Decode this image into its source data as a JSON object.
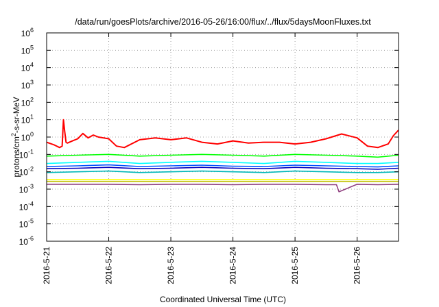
{
  "chart_data": {
    "type": "line",
    "title": "/data/run/goesPlots/archive/2016-05-26/16:00/flux/../flux/5daysMoonFluxes.txt",
    "xlabel": "Coordinated Universal Time (UTC)",
    "ylabel_parts": [
      "protons/cm",
      "2",
      "-s-sr-MeV"
    ],
    "y_scale": "log",
    "ylim": [
      1e-06,
      1000000.0
    ],
    "y_ticks": [
      {
        "base": "10",
        "exp": "-6",
        "value": 1e-06
      },
      {
        "base": "10",
        "exp": "-5",
        "value": 1e-05
      },
      {
        "base": "10",
        "exp": "-4",
        "value": 0.0001
      },
      {
        "base": "10",
        "exp": "-3",
        "value": 0.001
      },
      {
        "base": "10",
        "exp": "-2",
        "value": 0.01
      },
      {
        "base": "10",
        "exp": "-1",
        "value": 0.1
      },
      {
        "base": "10",
        "exp": "0",
        "value": 1
      },
      {
        "base": "10",
        "exp": "1",
        "value": 10
      },
      {
        "base": "10",
        "exp": "2",
        "value": 100
      },
      {
        "base": "10",
        "exp": "3",
        "value": 1000
      },
      {
        "base": "10",
        "exp": "4",
        "value": 10000
      },
      {
        "base": "10",
        "exp": "5",
        "value": 100000
      },
      {
        "base": "10",
        "exp": "6",
        "value": 1000000
      }
    ],
    "x_start": "2016-05-21 00:00",
    "x_end": "2016-05-26 16:00",
    "x_ticks": [
      "2016-5-21",
      "2016-5-22",
      "2016-5-23",
      "2016-5-24",
      "2016-5-25",
      "2016-5-26"
    ],
    "grid": true,
    "series": [
      {
        "color": "#ff0000",
        "x": [
          "2016-05-21 00:00",
          "2016-05-21 03:00",
          "2016-05-21 05:00",
          "2016-05-21 06:00",
          "2016-05-21 06:30",
          "2016-05-21 07:00",
          "2016-05-21 07:30",
          "2016-05-21 08:00",
          "2016-05-21 10:00",
          "2016-05-21 12:00",
          "2016-05-21 14:00",
          "2016-05-21 16:00",
          "2016-05-21 18:00",
          "2016-05-21 20:00",
          "2016-05-22 00:00",
          "2016-05-22 03:00",
          "2016-05-22 06:00",
          "2016-05-22 12:00",
          "2016-05-22 18:00",
          "2016-05-23 00:00",
          "2016-05-23 06:00",
          "2016-05-23 12:00",
          "2016-05-23 18:00",
          "2016-05-24 00:00",
          "2016-05-24 06:00",
          "2016-05-24 12:00",
          "2016-05-24 18:00",
          "2016-05-25 00:00",
          "2016-05-25 06:00",
          "2016-05-25 12:00",
          "2016-05-25 18:00",
          "2016-05-26 00:00",
          "2016-05-26 04:00",
          "2016-05-26 08:00",
          "2016-05-26 12:00",
          "2016-05-26 14:00",
          "2016-05-26 16:00"
        ],
        "y": [
          0.5,
          0.35,
          0.25,
          0.3,
          10,
          2,
          0.5,
          0.45,
          0.6,
          0.8,
          1.6,
          0.9,
          1.3,
          1.0,
          0.8,
          0.3,
          0.25,
          0.7,
          0.9,
          0.7,
          0.9,
          0.5,
          0.4,
          0.6,
          0.45,
          0.5,
          0.5,
          0.4,
          0.5,
          0.8,
          1.5,
          0.9,
          0.3,
          0.25,
          0.4,
          1.2,
          2.5
        ]
      },
      {
        "color": "#00ff00",
        "x": [
          "2016-05-21 00:00",
          "2016-05-21 12:00",
          "2016-05-22 00:00",
          "2016-05-22 12:00",
          "2016-05-23 00:00",
          "2016-05-23 12:00",
          "2016-05-24 00:00",
          "2016-05-24 12:00",
          "2016-05-25 00:00",
          "2016-05-25 12:00",
          "2016-05-26 00:00",
          "2016-05-26 08:00",
          "2016-05-26 16:00"
        ],
        "y": [
          0.08,
          0.09,
          0.1,
          0.08,
          0.09,
          0.1,
          0.09,
          0.08,
          0.1,
          0.09,
          0.08,
          0.07,
          0.09
        ]
      },
      {
        "color": "#00ffff",
        "x": [
          "2016-05-21 00:00",
          "2016-05-21 12:00",
          "2016-05-22 00:00",
          "2016-05-22 12:00",
          "2016-05-23 00:00",
          "2016-05-23 12:00",
          "2016-05-24 00:00",
          "2016-05-24 12:00",
          "2016-05-25 00:00",
          "2016-05-25 12:00",
          "2016-05-26 00:00",
          "2016-05-26 08:00",
          "2016-05-26 16:00"
        ],
        "y": [
          0.03,
          0.035,
          0.04,
          0.03,
          0.035,
          0.04,
          0.035,
          0.03,
          0.04,
          0.035,
          0.03,
          0.03,
          0.035
        ]
      },
      {
        "color": "#0050ff",
        "x": [
          "2016-05-21 00:00",
          "2016-05-21 12:00",
          "2016-05-22 00:00",
          "2016-05-22 12:00",
          "2016-05-23 00:00",
          "2016-05-23 12:00",
          "2016-05-24 00:00",
          "2016-05-24 12:00",
          "2016-05-25 00:00",
          "2016-05-25 12:00",
          "2016-05-26 00:00",
          "2016-05-26 08:00",
          "2016-05-26 16:00"
        ],
        "y": [
          0.02,
          0.022,
          0.025,
          0.02,
          0.022,
          0.024,
          0.021,
          0.02,
          0.024,
          0.022,
          0.02,
          0.019,
          0.022
        ]
      },
      {
        "color": "#0000c0",
        "x": [
          "2016-05-21 00:00",
          "2016-05-21 12:00",
          "2016-05-22 00:00",
          "2016-05-22 12:00",
          "2016-05-23 00:00",
          "2016-05-23 12:00",
          "2016-05-24 00:00",
          "2016-05-24 12:00",
          "2016-05-25 00:00",
          "2016-05-25 12:00",
          "2016-05-26 00:00",
          "2016-05-26 08:00",
          "2016-05-26 16:00"
        ],
        "y": [
          0.015,
          0.016,
          0.018,
          0.015,
          0.016,
          0.018,
          0.016,
          0.015,
          0.018,
          0.016,
          0.015,
          0.014,
          0.016
        ]
      },
      {
        "color": "#00b8b8",
        "x": [
          "2016-05-21 00:00",
          "2016-05-21 12:00",
          "2016-05-22 00:00",
          "2016-05-22 12:00",
          "2016-05-23 00:00",
          "2016-05-23 12:00",
          "2016-05-24 00:00",
          "2016-05-24 12:00",
          "2016-05-25 00:00",
          "2016-05-25 12:00",
          "2016-05-26 00:00",
          "2016-05-26 08:00",
          "2016-05-26 16:00"
        ],
        "y": [
          0.009,
          0.01,
          0.011,
          0.009,
          0.01,
          0.011,
          0.01,
          0.009,
          0.011,
          0.01,
          0.009,
          0.009,
          0.01
        ]
      },
      {
        "color": "#ffff00",
        "x": [
          "2016-05-21 00:00",
          "2016-05-22 00:00",
          "2016-05-23 00:00",
          "2016-05-24 00:00",
          "2016-05-25 00:00",
          "2016-05-26 00:00",
          "2016-05-26 16:00"
        ],
        "y": [
          0.0035,
          0.0035,
          0.0035,
          0.0035,
          0.0035,
          0.0035,
          0.0035
        ]
      },
      {
        "color": "#c0c000",
        "x": [
          "2016-05-21 00:00",
          "2016-05-22 00:00",
          "2016-05-23 00:00",
          "2016-05-24 00:00",
          "2016-05-25 00:00",
          "2016-05-26 00:00",
          "2016-05-26 16:00"
        ],
        "y": [
          0.0028,
          0.0028,
          0.0028,
          0.0028,
          0.0028,
          0.0028,
          0.0028
        ]
      },
      {
        "color": "#904080",
        "x": [
          "2016-05-21 00:00",
          "2016-05-21 12:00",
          "2016-05-22 00:00",
          "2016-05-22 12:00",
          "2016-05-23 00:00",
          "2016-05-23 12:00",
          "2016-05-24 00:00",
          "2016-05-24 12:00",
          "2016-05-25 00:00",
          "2016-05-25 12:00",
          "2016-05-25 16:00",
          "2016-05-25 17:00",
          "2016-05-26 00:00",
          "2016-05-26 08:00",
          "2016-05-26 16:00"
        ],
        "y": [
          0.0019,
          0.0019,
          0.0019,
          0.0018,
          0.0019,
          0.0019,
          0.0018,
          0.0019,
          0.0019,
          0.0018,
          0.0018,
          0.0007,
          0.0019,
          0.0018,
          0.0019
        ]
      }
    ]
  }
}
